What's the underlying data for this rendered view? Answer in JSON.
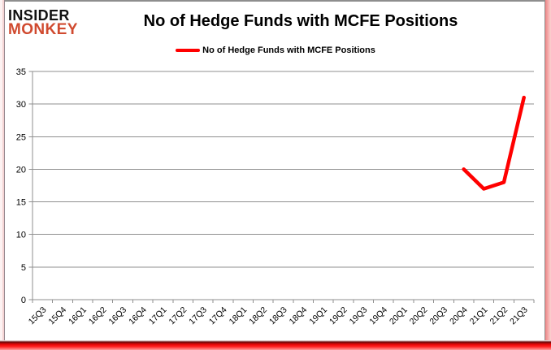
{
  "logo": {
    "line1": "INSIDER",
    "line2": "MONKEY"
  },
  "header": {
    "title": "No of Hedge Funds with MCFE Positions"
  },
  "legend": {
    "label": "No of Hedge Funds with MCFE Positions"
  },
  "colors": {
    "series_red": "#ff0000",
    "logo_red": "#d04a2f",
    "grid_gray": "#8f8f8f",
    "axis_gray": "#8f8f8f",
    "text_black": "#000000"
  },
  "chart_data": {
    "type": "line",
    "title": "No of Hedge Funds with MCFE Positions",
    "xlabel": "",
    "ylabel": "",
    "ylim": [
      0,
      35
    ],
    "ytick_step": 5,
    "grid": "horizontal-major",
    "legend_position": "top-center",
    "categories": [
      "15Q3",
      "15Q4",
      "16Q1",
      "16Q2",
      "16Q3",
      "16Q4",
      "17Q1",
      "17Q2",
      "17Q3",
      "17Q4",
      "18Q1",
      "18Q2",
      "18Q3",
      "18Q4",
      "19Q1",
      "19Q2",
      "19Q3",
      "19Q4",
      "20Q1",
      "20Q2",
      "20Q3",
      "20Q4",
      "21Q1",
      "21Q2",
      "21Q3"
    ],
    "series": [
      {
        "name": "No of Hedge Funds with MCFE Positions",
        "color": "#ff0000",
        "values": [
          null,
          null,
          null,
          null,
          null,
          null,
          null,
          null,
          null,
          null,
          null,
          null,
          null,
          null,
          null,
          null,
          null,
          null,
          null,
          null,
          null,
          20,
          17,
          18,
          31
        ]
      }
    ]
  }
}
